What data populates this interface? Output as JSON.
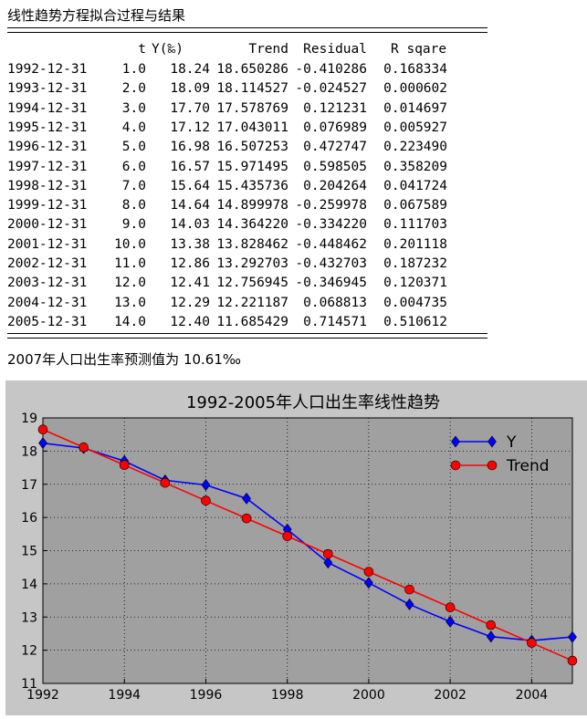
{
  "heading": "线性趋势方程拟合过程与结果",
  "table": {
    "columns": [
      "t",
      "Y(‰)",
      "Trend",
      "Residual",
      "R sqare"
    ],
    "rows": [
      [
        "1992-12-31",
        "1.0",
        "18.24",
        "18.650286",
        "-0.410286",
        "0.168334"
      ],
      [
        "1993-12-31",
        "2.0",
        "18.09",
        "18.114527",
        "-0.024527",
        "0.000602"
      ],
      [
        "1994-12-31",
        "3.0",
        "17.70",
        "17.578769",
        "0.121231",
        "0.014697"
      ],
      [
        "1995-12-31",
        "4.0",
        "17.12",
        "17.043011",
        "0.076989",
        "0.005927"
      ],
      [
        "1996-12-31",
        "5.0",
        "16.98",
        "16.507253",
        "0.472747",
        "0.223490"
      ],
      [
        "1997-12-31",
        "6.0",
        "16.57",
        "15.971495",
        "0.598505",
        "0.358209"
      ],
      [
        "1998-12-31",
        "7.0",
        "15.64",
        "15.435736",
        "0.204264",
        "0.041724"
      ],
      [
        "1999-12-31",
        "8.0",
        "14.64",
        "14.899978",
        "-0.259978",
        "0.067589"
      ],
      [
        "2000-12-31",
        "9.0",
        "14.03",
        "14.364220",
        "-0.334220",
        "0.111703"
      ],
      [
        "2001-12-31",
        "10.0",
        "13.38",
        "13.828462",
        "-0.448462",
        "0.201118"
      ],
      [
        "2002-12-31",
        "11.0",
        "12.86",
        "13.292703",
        "-0.432703",
        "0.187232"
      ],
      [
        "2003-12-31",
        "12.0",
        "12.41",
        "12.756945",
        "-0.346945",
        "0.120371"
      ],
      [
        "2004-12-31",
        "13.0",
        "12.29",
        "12.221187",
        "0.068813",
        "0.004735"
      ],
      [
        "2005-12-31",
        "14.0",
        "12.40",
        "11.685429",
        "0.714571",
        "0.510612"
      ]
    ]
  },
  "forecast_text": "2007年人口出生率预测值为 10.61‰",
  "chart_data": {
    "type": "line",
    "title": "1992-2005年人口出生率线性趋势",
    "x": [
      1992,
      1993,
      1994,
      1995,
      1996,
      1997,
      1998,
      1999,
      2000,
      2001,
      2002,
      2003,
      2004,
      2005
    ],
    "series": [
      {
        "name": "Y",
        "values": [
          18.24,
          18.09,
          17.7,
          17.12,
          16.98,
          16.57,
          15.64,
          14.64,
          14.03,
          13.38,
          12.86,
          12.41,
          12.29,
          12.4
        ],
        "color": "#0000ff",
        "marker": "diamond"
      },
      {
        "name": "Trend",
        "values": [
          18.650286,
          18.114527,
          17.578769,
          17.043011,
          16.507253,
          15.971495,
          15.435736,
          14.899978,
          14.36422,
          13.828462,
          13.292703,
          12.756945,
          12.221187,
          11.685429
        ],
        "color": "#ff0000",
        "marker": "circle"
      }
    ],
    "xlim": [
      1992,
      2005
    ],
    "ylim": [
      11,
      19
    ],
    "xticks": [
      "1992",
      "1994",
      "1996",
      "1998",
      "2000",
      "2002",
      "2004"
    ],
    "yticks": [
      "11",
      "12",
      "13",
      "14",
      "15",
      "16",
      "17",
      "18",
      "19"
    ],
    "grid": true,
    "legend": "top-right",
    "plot_bg": "#a0a0a0",
    "figure_bg": "#c6c6c6"
  }
}
